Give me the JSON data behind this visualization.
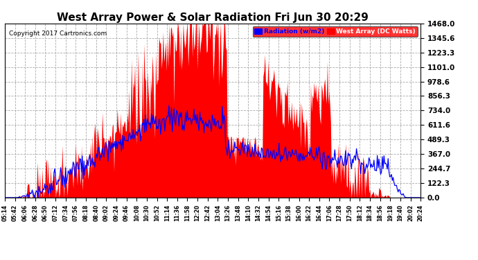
{
  "title": "West Array Power & Solar Radiation Fri Jun 30 20:29",
  "copyright": "Copyright 2017 Cartronics.com",
  "legend_radiation": "Radiation (w/m2)",
  "legend_west": "West Array (DC Watts)",
  "yticks": [
    0.0,
    122.3,
    244.7,
    367.0,
    489.3,
    611.6,
    734.0,
    856.3,
    978.6,
    1101.0,
    1223.3,
    1345.6,
    1468.0
  ],
  "ymax": 1468.0,
  "ymin": 0.0,
  "bg_color": "#ffffff",
  "plot_bg_color": "#ffffff",
  "grid_color": "#aaaaaa",
  "red_fill_color": "#ff0000",
  "blue_line_color": "#0000ff",
  "title_color": "#000000",
  "title_fontsize": 11,
  "xtick_fontsize": 5.5,
  "ytick_fontsize": 7.5,
  "xtick_labels": [
    "05:14",
    "05:42",
    "06:06",
    "06:28",
    "06:50",
    "07:12",
    "07:34",
    "07:56",
    "08:18",
    "08:40",
    "09:02",
    "09:24",
    "09:46",
    "10:08",
    "10:30",
    "10:52",
    "11:14",
    "11:36",
    "11:58",
    "12:20",
    "12:42",
    "13:04",
    "13:26",
    "13:48",
    "14:10",
    "14:32",
    "14:54",
    "15:16",
    "15:38",
    "16:00",
    "16:22",
    "16:44",
    "17:06",
    "17:28",
    "17:50",
    "18:12",
    "18:34",
    "18:56",
    "19:18",
    "19:40",
    "20:02",
    "20:24"
  ],
  "n_points": 500
}
